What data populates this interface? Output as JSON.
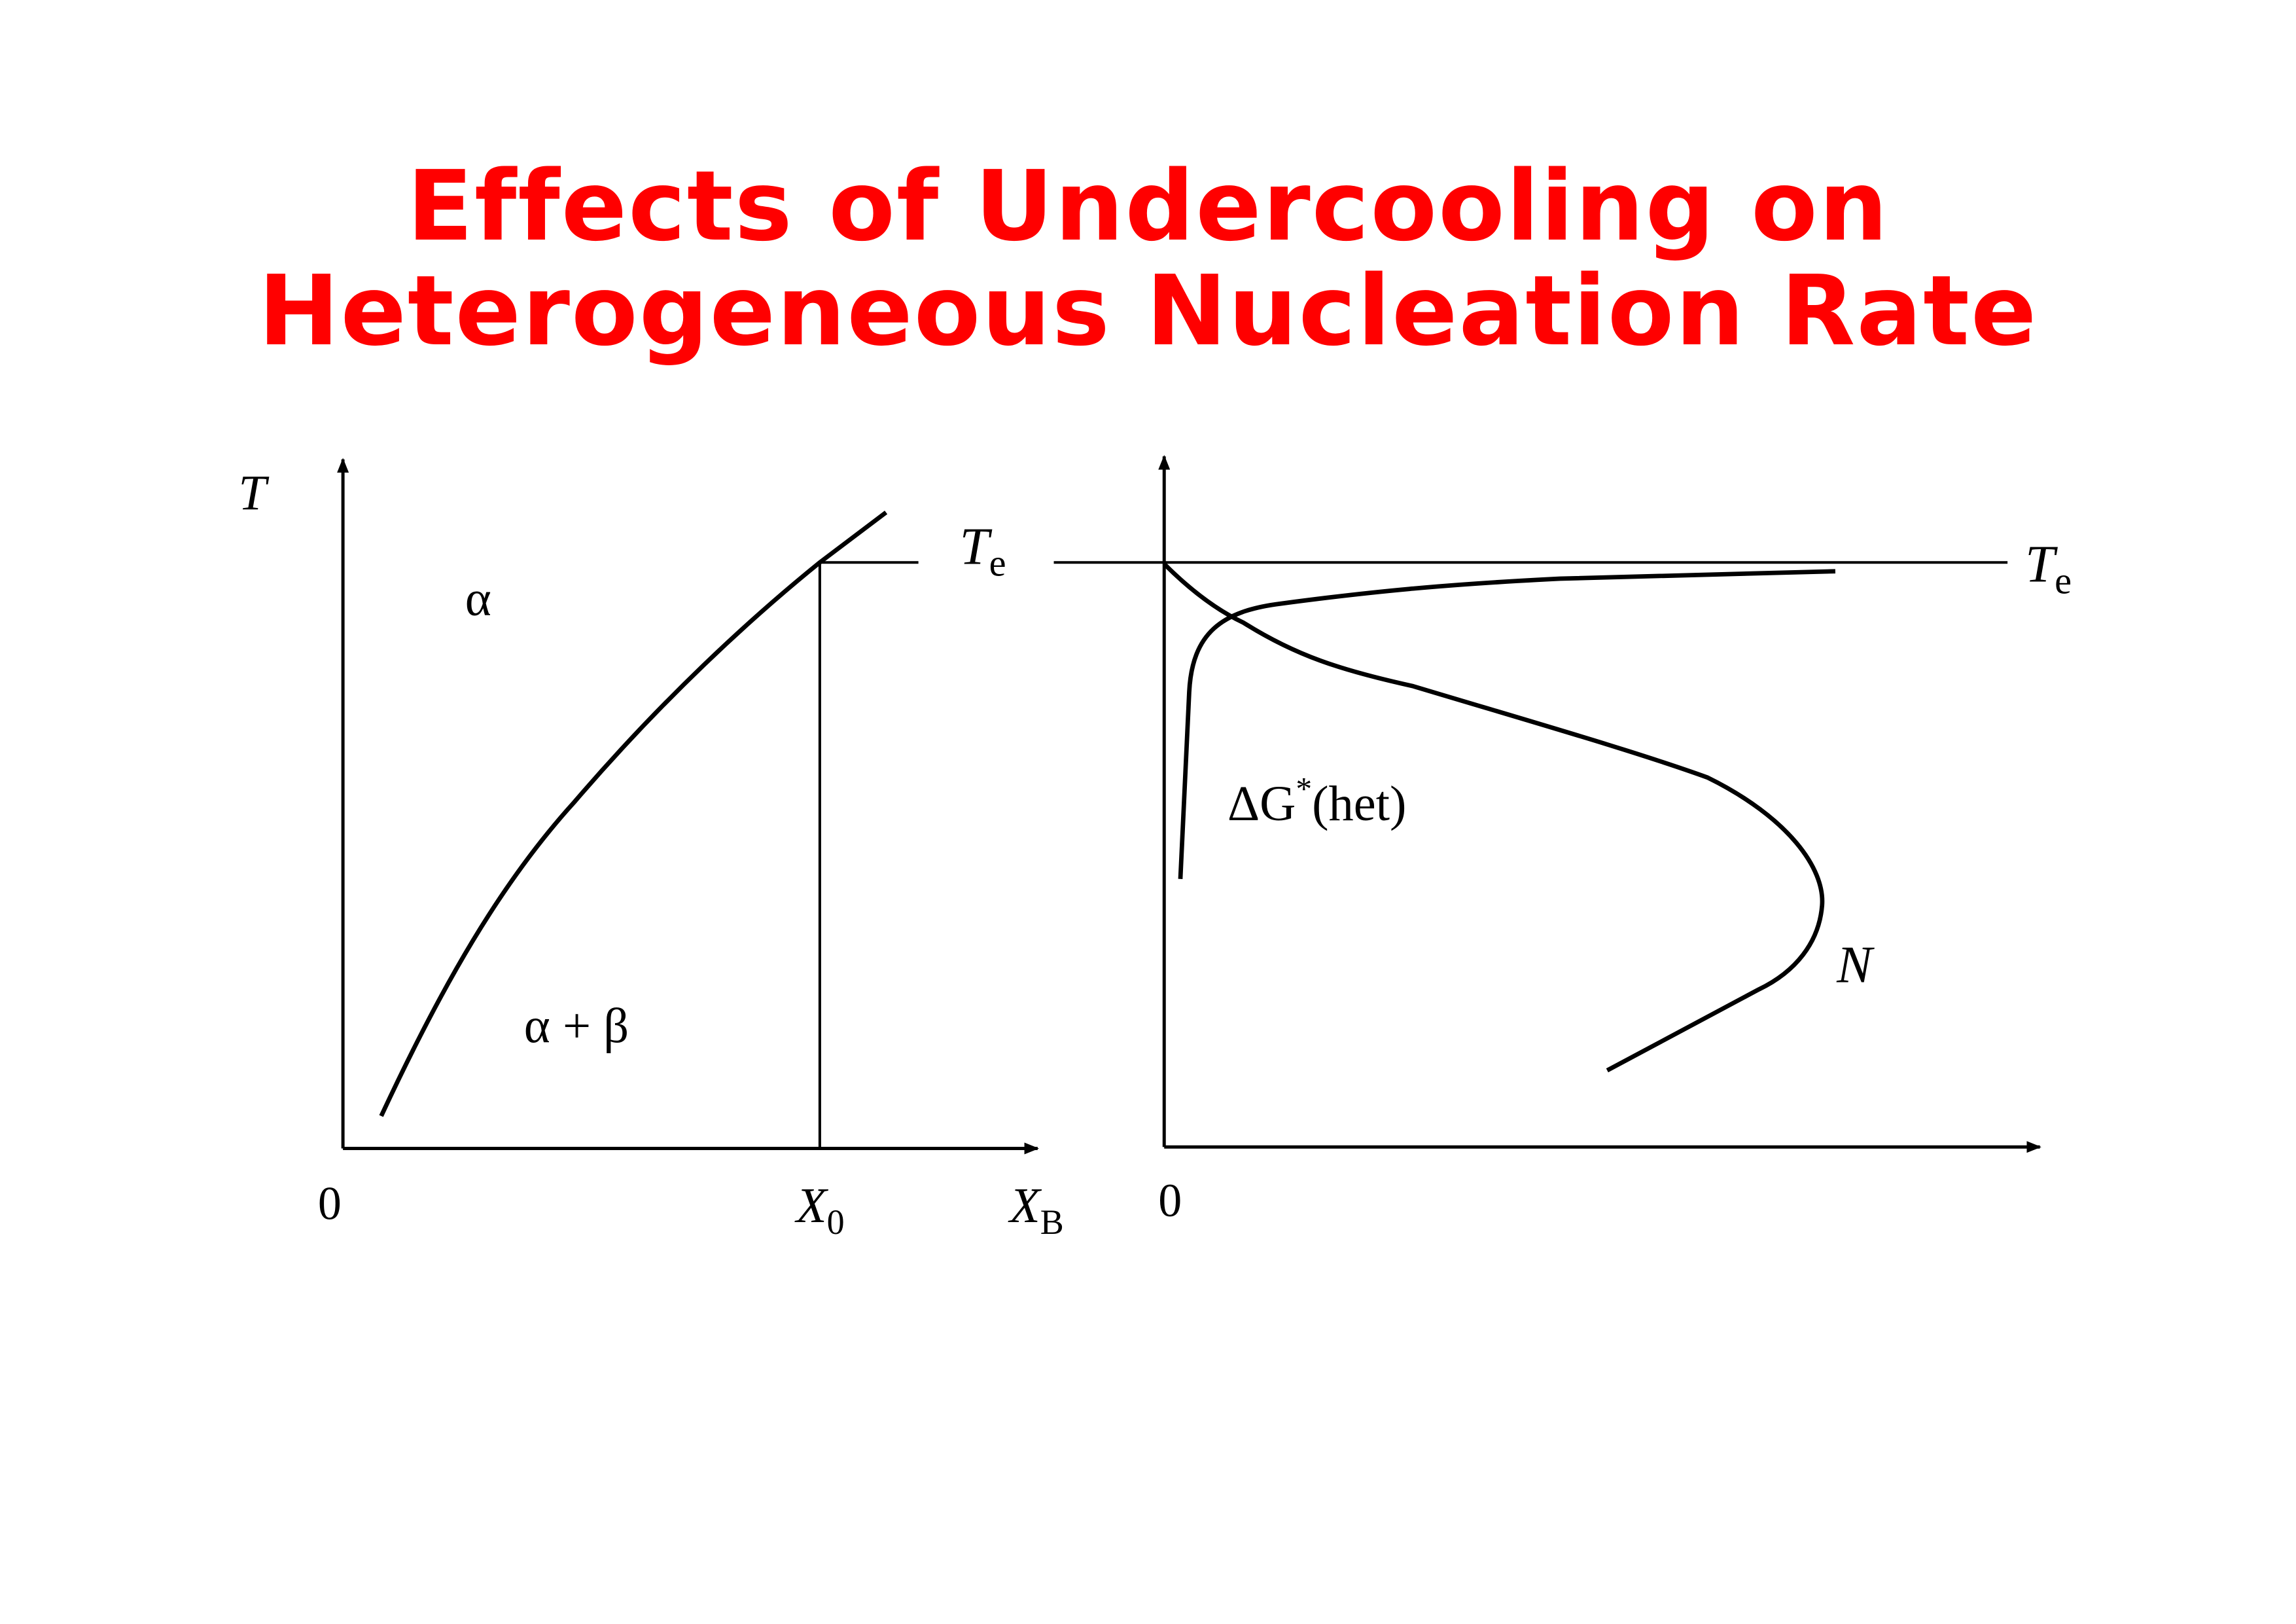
{
  "title": {
    "line1": "Effects of Undercooling on",
    "line2": "Heterogeneous Nucleation Rate",
    "color": "#ff0000"
  },
  "left_diagram": {
    "y_axis_label": "T",
    "x_axis_label": "X",
    "x_axis_label_sub": "B",
    "origin_label": "0",
    "x0_label": "X",
    "x0_sub": "0",
    "te_label": "T",
    "te_sub": "e",
    "region_single": "α",
    "region_two_phase": "α + β"
  },
  "right_diagram": {
    "origin_label": "0",
    "te_label": "T",
    "te_sub": "e",
    "dg_label": "ΔG",
    "dg_sup": "*",
    "dg_suffix": "(het)",
    "n_label": "N"
  }
}
